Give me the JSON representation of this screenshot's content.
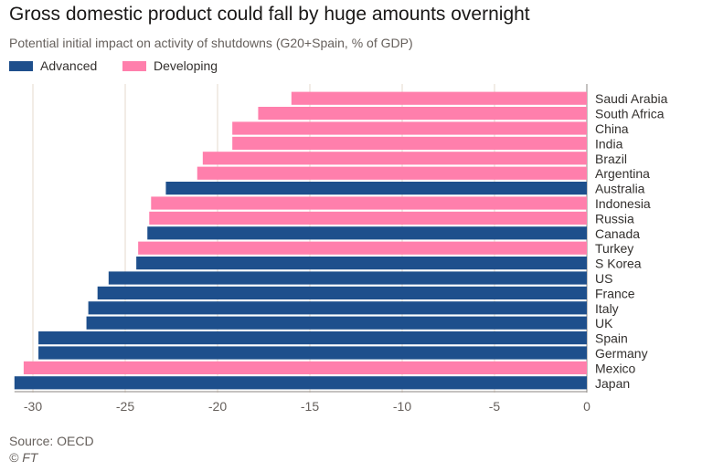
{
  "chart_data": {
    "type": "bar",
    "orientation": "horizontal",
    "title": "Gross domestic product could fall by huge amounts overnight",
    "subtitle": "Potential initial impact on activity of shutdowns (G20+Spain, % of GDP)",
    "xlabel": "",
    "ylabel": "",
    "xlim": [
      -31,
      0
    ],
    "x_ticks": [
      -30,
      -25,
      -20,
      -15,
      -10,
      -5,
      0
    ],
    "grid": true,
    "legend": [
      {
        "name": "Advanced",
        "color": "#1e4f8c"
      },
      {
        "name": "Developing",
        "color": "#ff7fac"
      }
    ],
    "categories": [
      "Saudi Arabia",
      "South Africa",
      "China",
      "India",
      "Brazil",
      "Argentina",
      "Australia",
      "Indonesia",
      "Russia",
      "Canada",
      "Turkey",
      "S Korea",
      "US",
      "France",
      "Italy",
      "UK",
      "Spain",
      "Germany",
      "Mexico",
      "Japan"
    ],
    "values": [
      -16.0,
      -17.8,
      -19.2,
      -19.2,
      -20.8,
      -21.1,
      -22.8,
      -23.6,
      -23.7,
      -23.8,
      -24.3,
      -24.4,
      -25.9,
      -26.5,
      -27.0,
      -27.1,
      -29.7,
      -29.7,
      -30.5,
      -31.0
    ],
    "groups": [
      "Developing",
      "Developing",
      "Developing",
      "Developing",
      "Developing",
      "Developing",
      "Advanced",
      "Developing",
      "Developing",
      "Advanced",
      "Developing",
      "Advanced",
      "Advanced",
      "Advanced",
      "Advanced",
      "Advanced",
      "Advanced",
      "Advanced",
      "Developing",
      "Advanced"
    ]
  },
  "footer": {
    "source": "Source: OECD",
    "credit": "© FT"
  }
}
